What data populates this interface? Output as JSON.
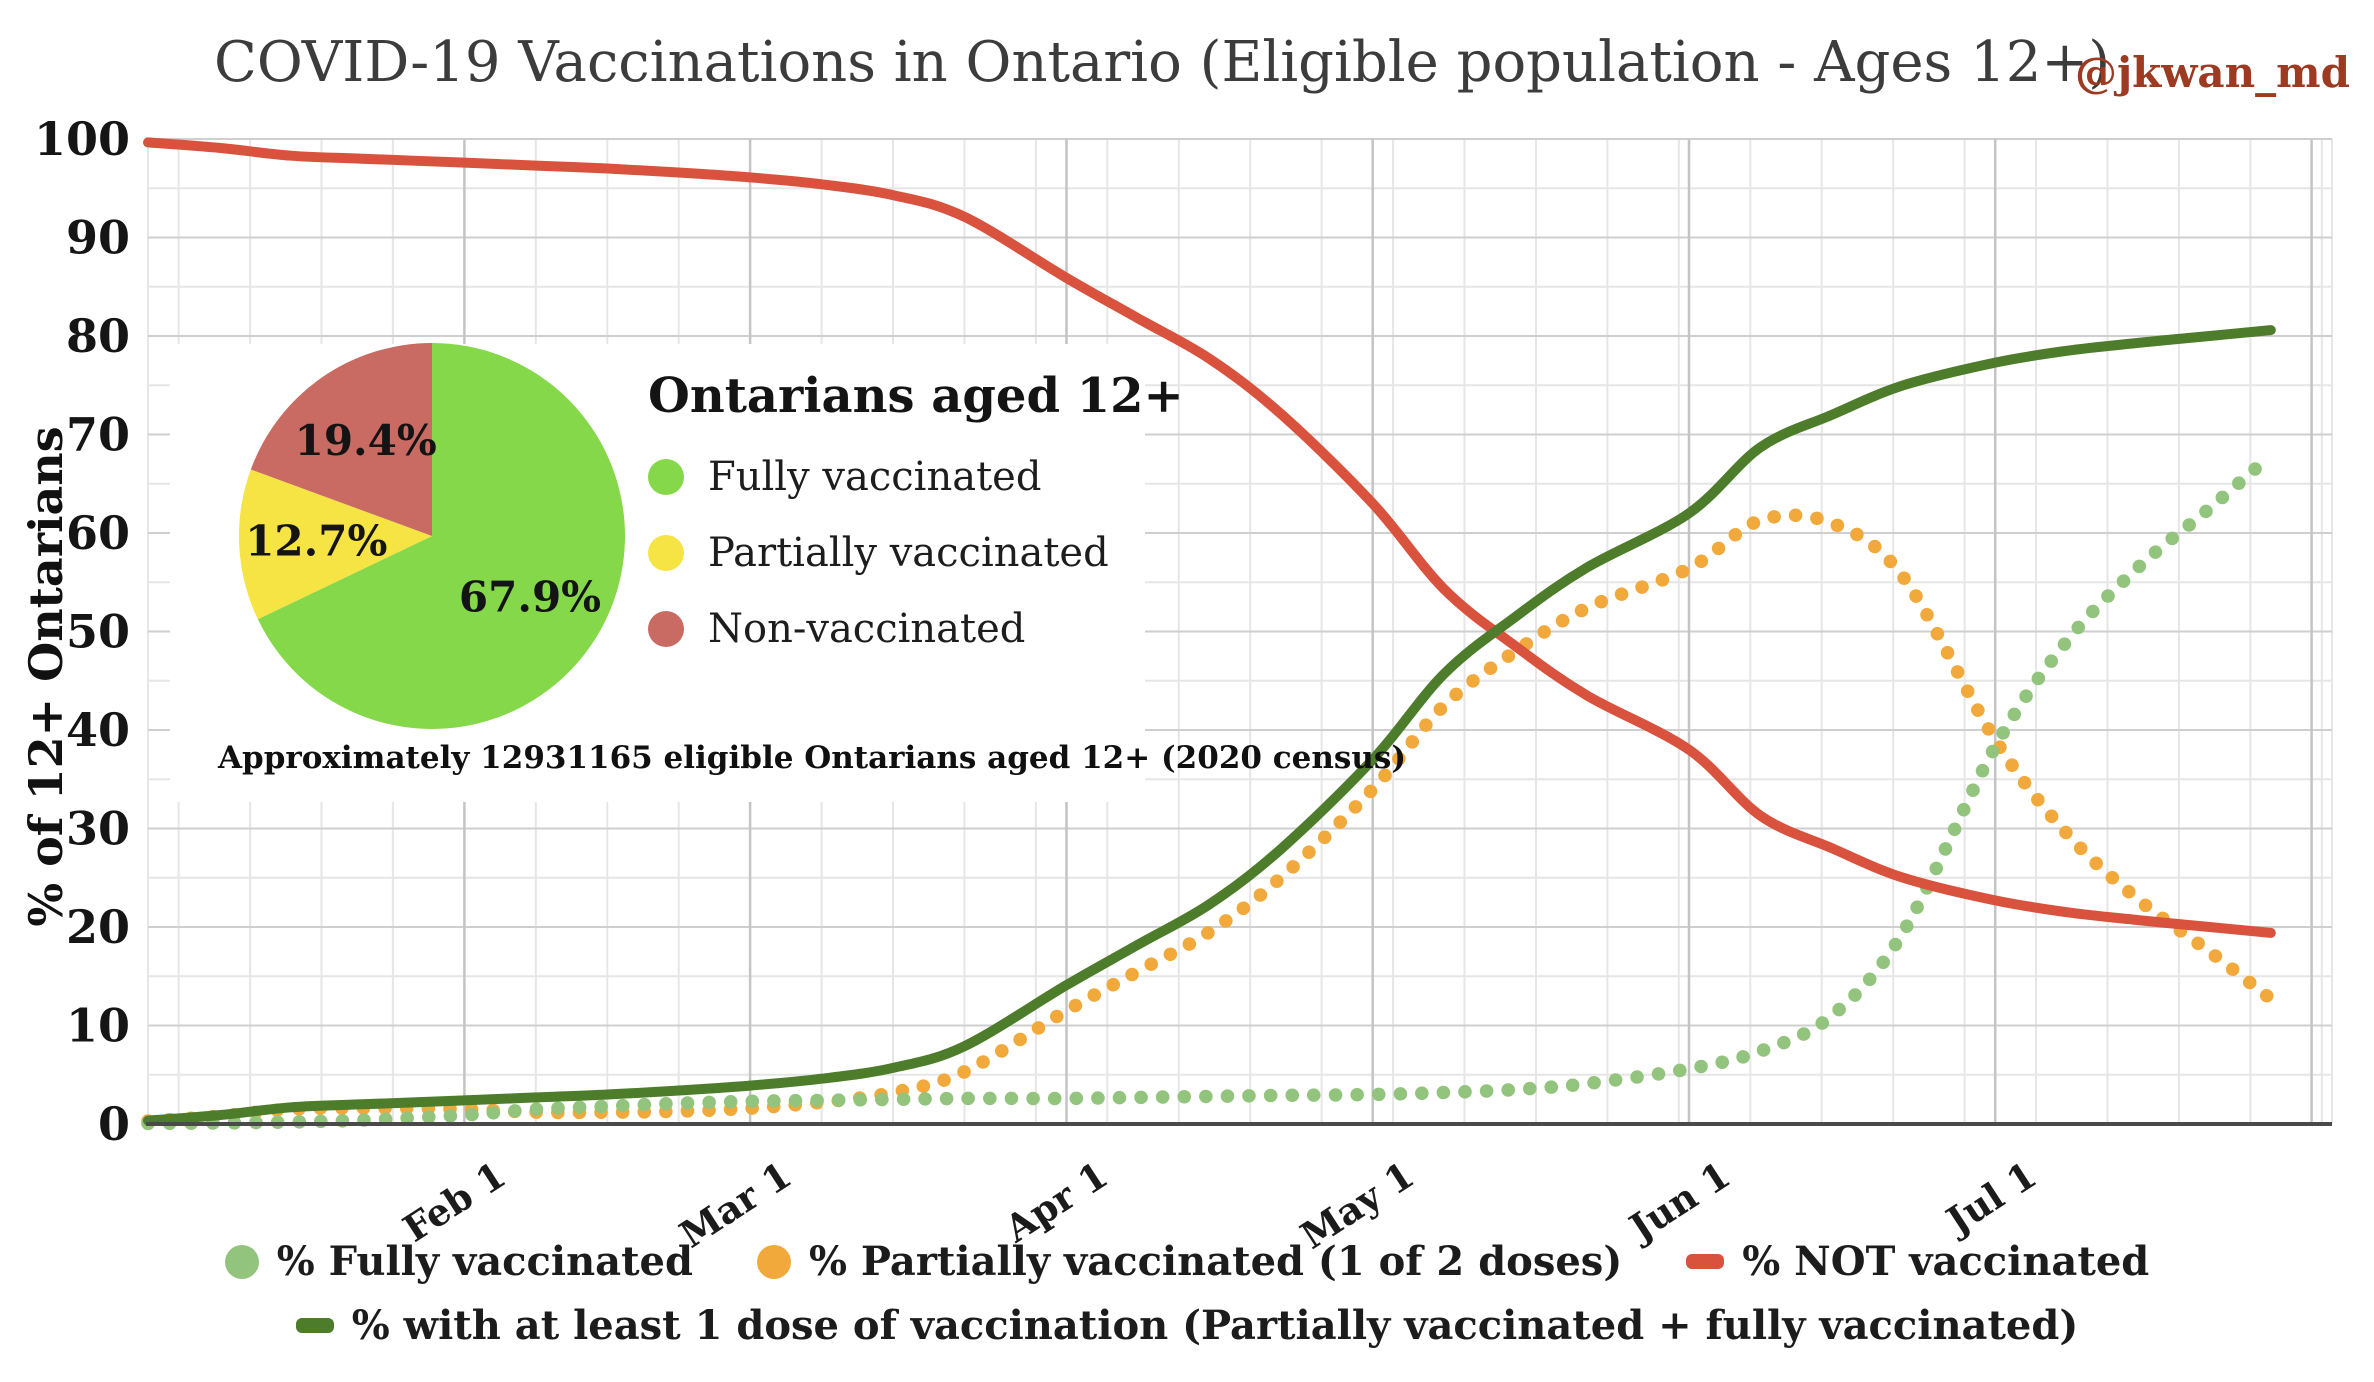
{
  "attribution": "@jkwan_md",
  "colors": {
    "fully": "#93c47d",
    "partial": "#f1a93b",
    "not_vaccinated": "#d9523e",
    "at_least_one": "#4d7c2b",
    "pie_fully": "#85d849",
    "pie_partial": "#f6e344",
    "pie_non": "#c96b62",
    "title_text": "#3c3c3c",
    "attribution_text": "#9c3a22",
    "grid_major": "#cfcfcf",
    "grid_minor": "#e6e6e6",
    "axis_line": "#4a4a4a"
  },
  "chart_data": {
    "type": "line",
    "title": "COVID-19 Vaccinations in Ontario (Eligible population - Ages 12+)",
    "xlabel": "",
    "ylabel": "% of 12+ Ontarians",
    "ylim": [
      0,
      100
    ],
    "y_tick_step": 10,
    "grid": true,
    "legend_position": "bottom",
    "x_domain_days": [
      0,
      214
    ],
    "x_ticks": [
      {
        "day": 31,
        "label": "Feb 1"
      },
      {
        "day": 59,
        "label": "Mar 1"
      },
      {
        "day": 90,
        "label": "Apr 1"
      },
      {
        "day": 120,
        "label": "May 1"
      },
      {
        "day": 151,
        "label": "Jun 1"
      },
      {
        "day": 181,
        "label": "Jul 1"
      }
    ],
    "month_grid_days": [
      31,
      59,
      90,
      120,
      151,
      181,
      212
    ],
    "dates": [
      "Jan 1",
      "Jan 8",
      "Jan 15",
      "Jan 22",
      "Feb 1",
      "Feb 8",
      "Feb 15",
      "Feb 22",
      "Mar 1",
      "Mar 8",
      "Mar 15",
      "Mar 22",
      "Apr 1",
      "Apr 8",
      "Apr 15",
      "Apr 22",
      "May 1",
      "May 8",
      "May 15",
      "May 22",
      "Jun 1",
      "Jun 8",
      "Jun 15",
      "Jun 22",
      "Jul 1",
      "Jul 8",
      "Jul 15",
      "Jul 22",
      "Jul 28"
    ],
    "days": [
      0,
      7,
      14,
      21,
      31,
      38,
      45,
      52,
      59,
      66,
      73,
      80,
      90,
      97,
      104,
      111,
      120,
      127,
      134,
      141,
      151,
      158,
      165,
      172,
      181,
      188,
      195,
      202,
      208
    ],
    "series": [
      {
        "name": "% Fully vaccinated",
        "marker": "dot",
        "color_key": "fully",
        "legend_row": 1,
        "values": [
          0.05,
          0.1,
          0.2,
          0.4,
          0.9,
          1.5,
          1.8,
          2.1,
          2.3,
          2.4,
          2.5,
          2.6,
          2.6,
          2.7,
          2.8,
          2.9,
          3.0,
          3.2,
          3.5,
          4.1,
          5.6,
          7.4,
          11.0,
          19.5,
          38.3,
          49.0,
          56.5,
          62.5,
          67.9
        ]
      },
      {
        "name": "% Partially vaccinated (1 of 2 doses)",
        "marker": "dot",
        "color_key": "partial",
        "legend_row": 1,
        "values": [
          0.3,
          0.8,
          1.5,
          1.6,
          1.5,
          1.2,
          1.2,
          1.3,
          1.6,
          2.2,
          3.2,
          5.3,
          11.5,
          15.5,
          19.5,
          25.0,
          34.0,
          42.5,
          48.0,
          52.4,
          56.4,
          61.3,
          61.0,
          55.5,
          39.0,
          29.5,
          22.8,
          17.5,
          12.7
        ]
      },
      {
        "name": "% NOT vaccinated",
        "marker": "dash",
        "color_key": "not_vaccinated",
        "legend_row": 1,
        "values": [
          99.65,
          99.1,
          98.3,
          98.0,
          97.6,
          97.3,
          97.0,
          96.6,
          96.1,
          95.4,
          94.3,
          92.1,
          85.9,
          81.8,
          77.7,
          72.1,
          63.0,
          54.3,
          48.5,
          43.5,
          38.0,
          31.3,
          28.0,
          25.0,
          22.7,
          21.5,
          20.7,
          20.0,
          19.4
        ]
      },
      {
        "name": "% with at least 1 dose of vaccination (Partially vaccinated + fully vaccinated)",
        "marker": "dash",
        "color_key": "at_least_one",
        "legend_row": 2,
        "values": [
          0.35,
          0.9,
          1.7,
          2.0,
          2.4,
          2.7,
          3.0,
          3.4,
          3.9,
          4.6,
          5.7,
          7.9,
          14.1,
          18.2,
          22.3,
          27.9,
          37.0,
          45.7,
          51.5,
          56.5,
          62.0,
          68.7,
          72.0,
          75.0,
          77.3,
          78.5,
          79.3,
          80.0,
          80.6
        ]
      }
    ],
    "pie": {
      "title": "Ontarians aged 12+",
      "slices": [
        {
          "label": "Fully vaccinated",
          "value": 67.9,
          "display": "67.9%",
          "color_key": "pie_fully"
        },
        {
          "label": "Partially vaccinated",
          "value": 12.7,
          "display": "12.7%",
          "color_key": "pie_partial"
        },
        {
          "label": "Non-vaccinated",
          "value": 19.4,
          "display": "19.4%",
          "color_key": "pie_non"
        }
      ],
      "note": "Approximately 12931165 eligible Ontarians aged 12+ (2020 census)"
    }
  }
}
